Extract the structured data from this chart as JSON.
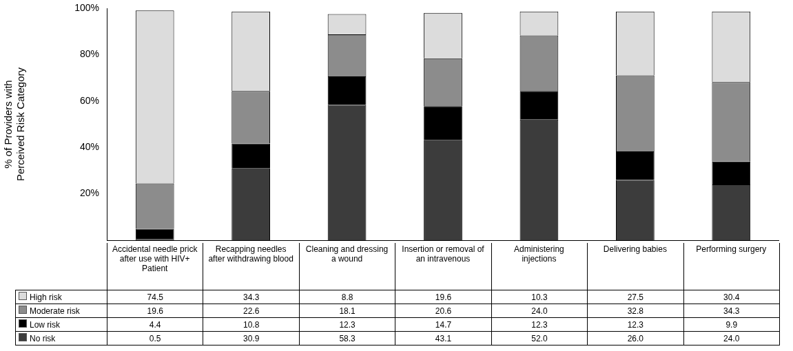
{
  "chart_data": {
    "type": "bar",
    "stacked": true,
    "ylabel": "% of Providers with Perceived Risk Category",
    "categories": [
      "Accidental needle prick after use with HIV+ Patient",
      "Recapping needles after withdrawing blood",
      "Cleaning and dressing a wound",
      "Insertion or removal of an intravenous",
      "Administering injections",
      "Delivering babies",
      "Performing surgery"
    ],
    "series": [
      {
        "name": "No risk",
        "color": "#3c3c3c",
        "values": [
          0.5,
          30.9,
          58.3,
          43.1,
          52.0,
          26.0,
          24.0
        ],
        "value_labels": [
          "0.5",
          "30.9",
          "58.3",
          "43.1",
          "52.0",
          "26.0",
          "24.0"
        ]
      },
      {
        "name": "Low risk",
        "color": "#000000",
        "values": [
          4.4,
          10.8,
          12.3,
          14.7,
          12.3,
          12.3,
          9.9
        ],
        "value_labels": [
          "4.4",
          "10.8",
          "12.3",
          "14.7",
          "12.3",
          "12.3",
          "9.9"
        ]
      },
      {
        "name": "Moderate risk",
        "color": "#8c8c8c",
        "values": [
          19.6,
          22.6,
          18.1,
          20.6,
          24.0,
          32.8,
          34.3
        ],
        "value_labels": [
          "19.6",
          "22.6",
          "18.1",
          "20.6",
          "24.0",
          "32.8",
          "34.3"
        ]
      },
      {
        "name": "High risk",
        "color": "#dcdcdc",
        "values": [
          74.5,
          34.3,
          8.8,
          19.6,
          10.3,
          27.5,
          30.4
        ],
        "value_labels": [
          "74.5",
          "34.3",
          "8.8",
          "19.6",
          "10.3",
          "27.5",
          "30.4"
        ]
      }
    ],
    "ylim": [
      0,
      100
    ],
    "yticks": [
      {
        "value": 20,
        "label": "20%"
      },
      {
        "value": 40,
        "label": "40%"
      },
      {
        "value": 60,
        "label": "60%"
      },
      {
        "value": 80,
        "label": "80%"
      },
      {
        "value": 100,
        "label": "100%"
      }
    ],
    "grid": false,
    "legend": "bottom left"
  }
}
